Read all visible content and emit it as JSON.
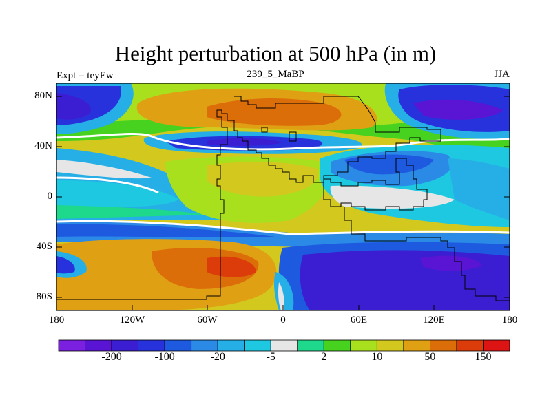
{
  "title": "Height perturbation at 500 hPa (in m)",
  "left_label": "Expt = teyEw",
  "center_label": "239_5_MaBP",
  "right_label": "JJA",
  "lat_ticks": [
    "80N",
    "40N",
    "0",
    "40S",
    "80S"
  ],
  "lon_ticks": [
    "180",
    "120W",
    "60W",
    "0",
    "60E",
    "120E",
    "180"
  ],
  "colorbar": {
    "labels": [
      "-200",
      "-100",
      "-20",
      "-5",
      "2",
      "10",
      "50",
      "150"
    ],
    "colors": [
      "#7b1fe0",
      "#5a14d4",
      "#3c1ed2",
      "#2832dc",
      "#1e5ae0",
      "#2a8ae6",
      "#26aee6",
      "#1ec8e0",
      "#e6e6e6",
      "#1ed88c",
      "#46d21e",
      "#a8e01e",
      "#d2c81e",
      "#e0a014",
      "#dc6e0a",
      "#dc3c0a",
      "#dc1414"
    ]
  }
}
